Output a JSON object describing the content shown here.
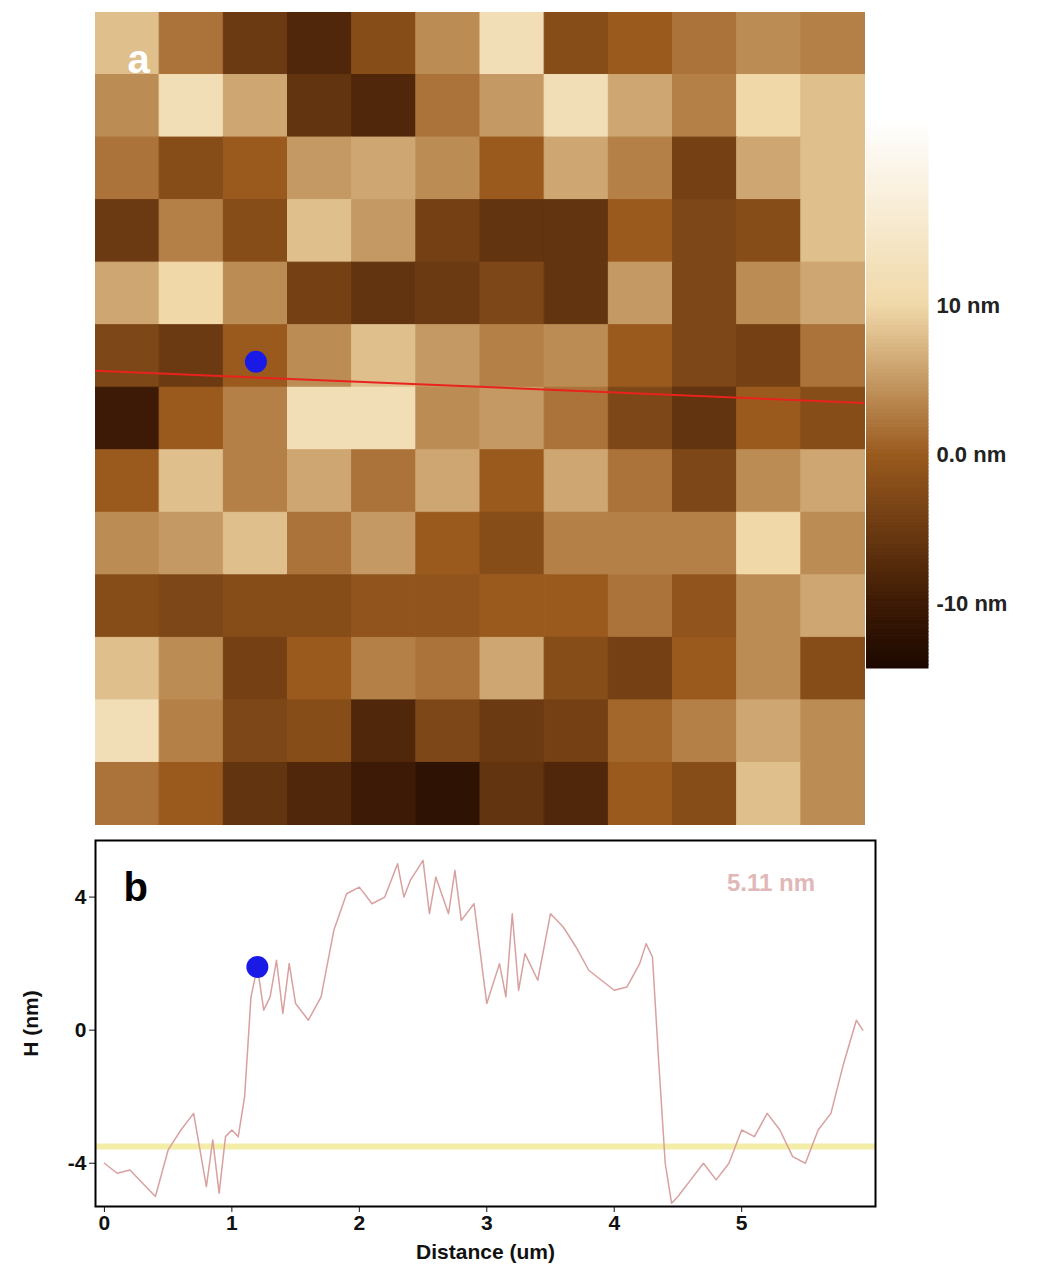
{
  "chart_data": [
    {
      "type": "heatmap",
      "panel_label": "a",
      "xlim": [
        0,
        6
      ],
      "ylim": [
        0,
        6.33
      ],
      "tick_labels": false,
      "cells": [
        [
          8,
          2,
          -5,
          -8,
          -2,
          4,
          12,
          -2,
          0,
          2,
          4,
          3
        ],
        [
          4,
          12,
          6,
          -6,
          -8,
          2,
          5,
          12,
          6,
          3,
          10,
          8
        ],
        [
          2,
          -2,
          0,
          5,
          6,
          4,
          0,
          6,
          3,
          -4,
          6,
          8
        ],
        [
          -5,
          3,
          -2,
          8,
          5,
          -4,
          -6,
          -6,
          0,
          -3,
          -2,
          8
        ],
        [
          6,
          10,
          4,
          -4,
          -6,
          -5,
          -3,
          -6,
          5,
          -3,
          4,
          6
        ],
        [
          -3,
          -5,
          0,
          4,
          8,
          5,
          3,
          4,
          0,
          -3,
          -4,
          2
        ],
        [
          -10,
          0,
          3,
          12,
          12,
          4,
          5,
          2,
          -3,
          -6,
          0,
          -2
        ],
        [
          0,
          8,
          3,
          6,
          2,
          6,
          0,
          6,
          2,
          -3,
          4,
          6
        ],
        [
          4,
          5,
          8,
          2,
          5,
          0,
          -2,
          3,
          3,
          3,
          10,
          4
        ],
        [
          -2,
          -3,
          -2,
          -2,
          -1,
          -1,
          0,
          0,
          2,
          -1,
          4,
          6
        ],
        [
          8,
          4,
          -4,
          0,
          3,
          2,
          6,
          -2,
          -4,
          0,
          4,
          -2
        ],
        [
          12,
          3,
          -3,
          -2,
          -8,
          -3,
          -5,
          -4,
          1,
          3,
          6,
          4
        ],
        [
          2,
          0,
          -6,
          -8,
          -10,
          -12,
          -6,
          -8,
          0,
          -2,
          8,
          4
        ]
      ],
      "colorbar": {
        "lim": [
          -14.3,
          22.4
        ],
        "ticks": [
          {
            "value": 10,
            "label": "10 nm"
          },
          {
            "value": 0,
            "label": "0.0 nm"
          },
          {
            "value": -10,
            "label": "-10 nm"
          }
        ]
      },
      "profile_line": {
        "color": "#e8231e",
        "x": [
          0,
          6
        ],
        "y": [
          2.79,
          3.04
        ]
      },
      "marker": {
        "x": 1.25,
        "y": 2.72,
        "color": "#1a1ae6"
      }
    },
    {
      "type": "line",
      "panel_label": "b",
      "x_label": "Distance (um)",
      "y_label": "H (nm)",
      "xlim": [
        -0.07,
        6.05
      ],
      "ylim": [
        -5.3,
        5.7
      ],
      "xticks": [
        0,
        1,
        2,
        3,
        4,
        5
      ],
      "yticks": [
        -4,
        0,
        4
      ],
      "color": "#d9a0a0",
      "x": [
        0,
        0.1,
        0.2,
        0.3,
        0.4,
        0.5,
        0.6,
        0.7,
        0.8,
        0.85,
        0.9,
        0.95,
        1.0,
        1.05,
        1.1,
        1.15,
        1.2,
        1.25,
        1.3,
        1.35,
        1.4,
        1.45,
        1.5,
        1.6,
        1.7,
        1.8,
        1.9,
        2.0,
        2.1,
        2.2,
        2.3,
        2.35,
        2.4,
        2.5,
        2.55,
        2.6,
        2.7,
        2.75,
        2.8,
        2.9,
        3.0,
        3.1,
        3.15,
        3.2,
        3.25,
        3.3,
        3.4,
        3.5,
        3.6,
        3.7,
        3.8,
        3.9,
        4.0,
        4.1,
        4.2,
        4.25,
        4.3,
        4.35,
        4.4,
        4.45,
        4.5,
        4.6,
        4.7,
        4.8,
        4.9,
        5.0,
        5.1,
        5.2,
        5.3,
        5.4,
        5.5,
        5.6,
        5.7,
        5.8,
        5.9,
        5.95
      ],
      "values": [
        -4.0,
        -4.3,
        -4.2,
        -4.6,
        -5.0,
        -3.6,
        -3.0,
        -2.5,
        -4.7,
        -3.3,
        -4.9,
        -3.2,
        -3.0,
        -3.2,
        -2.0,
        1.0,
        1.9,
        0.6,
        1.0,
        2.1,
        0.5,
        2.0,
        0.8,
        0.3,
        1.0,
        3.0,
        4.1,
        4.3,
        3.8,
        4.0,
        5.0,
        4.0,
        4.5,
        5.1,
        3.5,
        4.6,
        3.5,
        4.8,
        3.3,
        3.8,
        0.8,
        2.0,
        1.0,
        3.5,
        1.2,
        2.3,
        1.5,
        3.5,
        3.1,
        2.5,
        1.8,
        1.5,
        1.2,
        1.3,
        2.0,
        2.6,
        2.2,
        -1.0,
        -4.0,
        -5.2,
        -5.0,
        -4.5,
        -4.0,
        -4.5,
        -4.0,
        -3.0,
        -3.2,
        -2.5,
        -3.0,
        -3.8,
        -4.0,
        -3.0,
        -2.5,
        -1.0,
        0.3,
        0.0
      ],
      "reference_line": {
        "value": -3.5,
        "color": "#f3eda8"
      },
      "marker": {
        "x": 1.2,
        "y": 1.9,
        "color": "#1a1ae6"
      },
      "annotation": {
        "text": "5.11 nm",
        "x": 5.23,
        "y": 4.4,
        "color": "#e0b8b8"
      }
    }
  ]
}
